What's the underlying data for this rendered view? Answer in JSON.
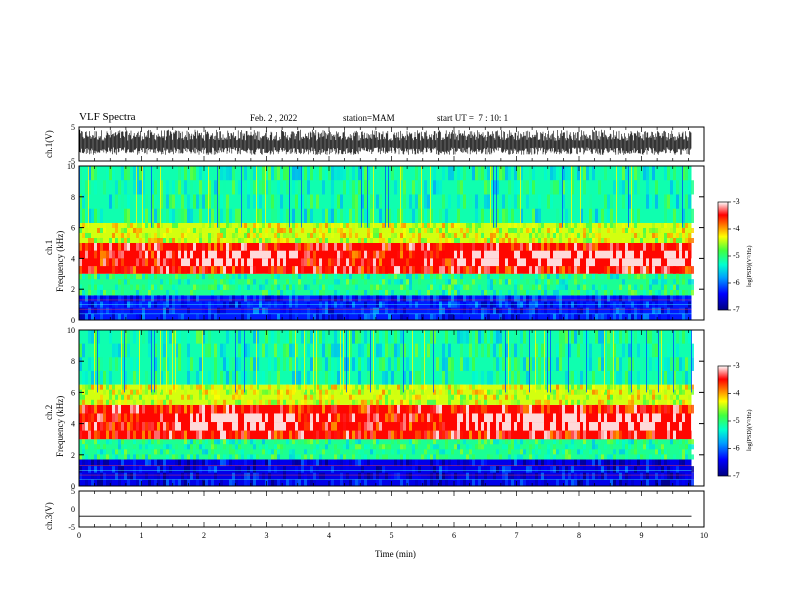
{
  "header": {
    "title": "VLF Spectra",
    "date": "Feb. 2 , 2022",
    "station": "station=MAM",
    "start": "start UT =  7 : 10: 1"
  },
  "labels": {
    "ch1_wave": "ch.1(V)",
    "ch1_spec_a": "ch.1",
    "ch1_spec_b": "Frequency (kHz)",
    "ch2_spec_a": "ch.2",
    "ch2_spec_b": "Frequency (kHz)",
    "ch3_wave": "ch.3(V)",
    "xlabel": "Time (min)",
    "cbar1": "log(PSD)(V²/Hz)",
    "cbar2": "log(PSD)(V²/Hz)"
  },
  "chart_data": [
    {
      "type": "line",
      "panel": "ch.1 waveform",
      "ylabel": "ch.1(V)",
      "ylim": [
        -5,
        5
      ],
      "yticks": [
        "5",
        "-5"
      ],
      "xlim": [
        0,
        10
      ],
      "note_values": "dense noise spanning roughly -3 to 4 V over 0-9.8 min"
    },
    {
      "type": "heatmap",
      "panel": "ch.1 spectrogram",
      "ylabel": "ch.1 Frequency (kHz)",
      "ylim": [
        0,
        10
      ],
      "yticks": [
        "0",
        "2",
        "4",
        "6",
        "8",
        "10"
      ],
      "xlim": [
        0,
        10
      ],
      "data_end_min": 9.8,
      "colorbar": {
        "label": "log(PSD)(V²/Hz)",
        "range": [
          -7,
          -3
        ],
        "ticks": [
          "-3",
          "-4",
          "-5",
          "-6",
          "-7"
        ]
      },
      "bands_khz": [
        {
          "from": 0,
          "to": 1.6,
          "level": -6.3
        },
        {
          "from": 1.6,
          "to": 3.0,
          "level": -5.1
        },
        {
          "from": 3.0,
          "to": 5.0,
          "level": -3.5
        },
        {
          "from": 5.0,
          "to": 6.3,
          "level": -4.4
        },
        {
          "from": 6.3,
          "to": 10,
          "level": -5.2
        }
      ],
      "intense_core_minutes": [
        [
          1.5,
          3.5
        ],
        [
          6.0,
          9.8
        ]
      ]
    },
    {
      "type": "heatmap",
      "panel": "ch.2 spectrogram",
      "ylabel": "ch.2 Frequency (kHz)",
      "ylim": [
        0,
        10
      ],
      "yticks": [
        "0",
        "2",
        "4",
        "6",
        "8",
        "10"
      ],
      "xlim": [
        0,
        10
      ],
      "data_end_min": 9.8,
      "colorbar": {
        "label": "log(PSD)(V²/Hz)",
        "range": [
          -7,
          -3
        ],
        "ticks": [
          "-3",
          "-4",
          "-5",
          "-6",
          "-7"
        ]
      },
      "bands_khz": [
        {
          "from": 0,
          "to": 1.7,
          "level": -6.5
        },
        {
          "from": 1.7,
          "to": 3.0,
          "level": -5.1
        },
        {
          "from": 3.0,
          "to": 5.2,
          "level": -3.5
        },
        {
          "from": 5.2,
          "to": 6.5,
          "level": -4.4
        },
        {
          "from": 6.5,
          "to": 10,
          "level": -5.2
        }
      ],
      "intense_core_minutes": [
        [
          1.5,
          3.5
        ],
        [
          6.0,
          9.8
        ]
      ]
    },
    {
      "type": "line",
      "panel": "ch.3 waveform",
      "ylabel": "ch.3(V)",
      "ylim": [
        -5,
        5
      ],
      "yticks": [
        "5",
        "0",
        "-5"
      ],
      "xlim": [
        0,
        10
      ],
      "x": [
        0,
        9.8
      ],
      "y": [
        -2.0,
        -2.0
      ]
    }
  ],
  "xaxis": {
    "label": "Time (min)",
    "ticks": [
      "0",
      "1",
      "2",
      "3",
      "4",
      "5",
      "6",
      "7",
      "8",
      "9",
      "10"
    ]
  }
}
